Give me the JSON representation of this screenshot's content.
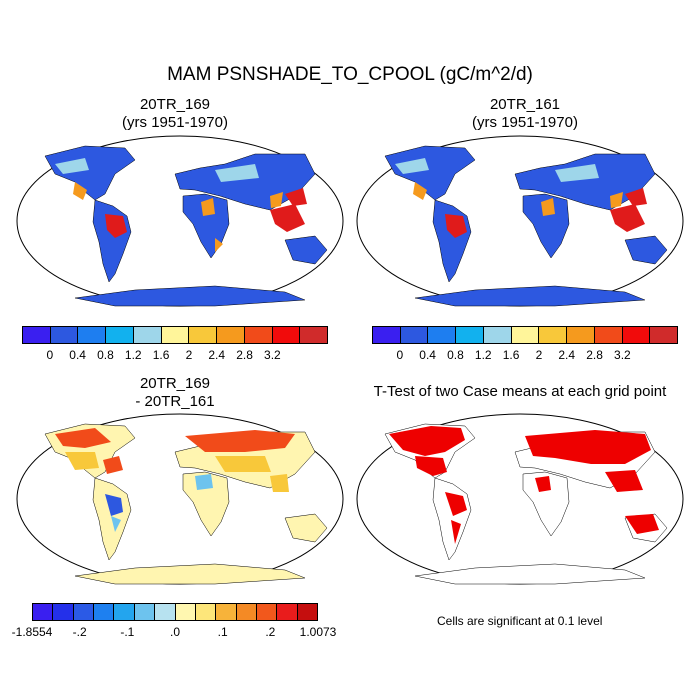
{
  "title": "MAM PSNSHADE_TO_CPOOL (gC/m^2/d)",
  "panels": {
    "tl": {
      "line1": "20TR_169",
      "line2": "(yrs 1951-1970)"
    },
    "tr": {
      "line1": "20TR_161",
      "line2": "(yrs 1951-1970)"
    },
    "bl": {
      "line1": "20TR_169",
      "line2": "- 20TR_161"
    },
    "br": {
      "line1": "T-Test of two Case means at each grid point"
    }
  },
  "colorbar_main": {
    "colors": [
      "#3a1ff0",
      "#2d58e0",
      "#1e7ef0",
      "#12b1ee",
      "#9ed6ea",
      "#fff59a",
      "#f8c83a",
      "#f59a1e",
      "#f14b1a",
      "#f10b0b",
      "#d02b2b"
    ],
    "labels": [
      "0",
      "0.4",
      "0.8",
      "1.2",
      "1.6",
      "2",
      "2.4",
      "2.8",
      "3.2"
    ]
  },
  "colorbar_diff": {
    "colors": [
      "#3a1ff0",
      "#2430ea",
      "#2b5ae6",
      "#1e80f0",
      "#23a5ee",
      "#6dc3ee",
      "#b7e2f0",
      "#fff7b0",
      "#fde67a",
      "#f7b33a",
      "#f48a25",
      "#f2581c",
      "#e91c1c",
      "#c50e0e"
    ],
    "labels": [
      "-1.8554",
      "-.2",
      "-.1",
      ".0",
      ".1",
      ".2",
      "1.0073"
    ]
  },
  "note": "Cells are significant at 0.1 level",
  "colors": {
    "ocean": "#ffffff",
    "land_pale": "#fff5b0",
    "signif": "#ee0000",
    "antarctica_main": "#2d58e0"
  }
}
